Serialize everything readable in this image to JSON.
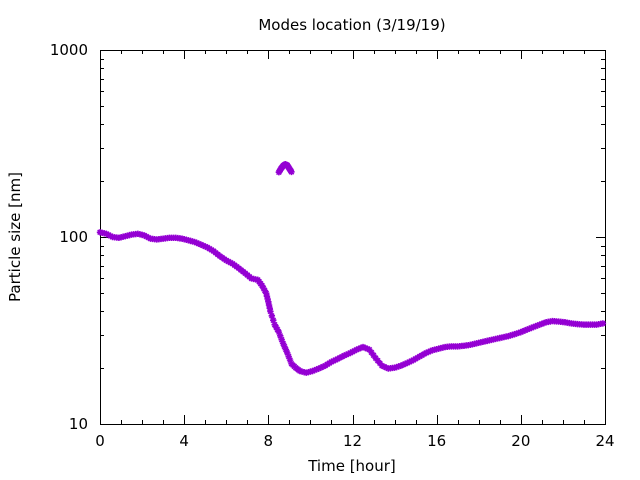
{
  "chart_data": {
    "type": "scatter",
    "title": "Modes location (3/19/19)",
    "xlabel": "Time [hour]",
    "ylabel": "Particle size [nm]",
    "xlim": [
      0,
      24
    ],
    "ylim": [
      10,
      1000
    ],
    "y_scale": "log",
    "grid": false,
    "legend": "none",
    "x_ticks": [
      0,
      4,
      8,
      12,
      16,
      20,
      24
    ],
    "x_tick_labels": [
      "0",
      "4",
      "8",
      "12",
      "16",
      "20",
      "24"
    ],
    "y_ticks": [
      10,
      100,
      1000
    ],
    "y_tick_labels": [
      "10",
      "100",
      "1000"
    ],
    "marker_color": "#9400D3",
    "series": [
      {
        "points": [
          [
            0.0,
            106
          ],
          [
            0.3,
            104
          ],
          [
            0.6,
            100
          ],
          [
            0.9,
            99
          ],
          [
            1.2,
            101
          ],
          [
            1.5,
            103
          ],
          [
            1.8,
            104
          ],
          [
            2.1,
            102
          ],
          [
            2.4,
            98
          ],
          [
            2.7,
            97
          ],
          [
            3.0,
            98
          ],
          [
            3.3,
            99
          ],
          [
            3.6,
            99
          ],
          [
            3.9,
            98
          ],
          [
            4.2,
            96
          ],
          [
            4.5,
            94
          ],
          [
            4.8,
            91
          ],
          [
            5.1,
            88
          ],
          [
            5.4,
            84
          ],
          [
            5.7,
            79
          ],
          [
            6.0,
            75
          ],
          [
            6.3,
            72
          ],
          [
            6.6,
            68
          ],
          [
            6.9,
            64
          ],
          [
            7.2,
            60
          ],
          [
            7.5,
            59
          ],
          [
            7.7,
            55
          ],
          [
            7.9,
            50
          ],
          [
            8.0,
            45
          ],
          [
            8.1,
            40
          ],
          [
            8.3,
            34
          ],
          [
            8.5,
            31
          ],
          [
            8.7,
            27
          ],
          [
            8.9,
            24
          ],
          [
            9.1,
            21
          ],
          [
            9.3,
            20
          ],
          [
            9.5,
            19.2
          ],
          [
            9.8,
            18.8
          ],
          [
            10.1,
            19.2
          ],
          [
            10.4,
            19.8
          ],
          [
            10.7,
            20.5
          ],
          [
            11.0,
            21.5
          ],
          [
            11.3,
            22.3
          ],
          [
            11.6,
            23.2
          ],
          [
            11.9,
            24.0
          ],
          [
            12.2,
            25.0
          ],
          [
            12.5,
            25.8
          ],
          [
            12.8,
            25.0
          ],
          [
            13.1,
            22.5
          ],
          [
            13.4,
            20.5
          ],
          [
            13.7,
            19.8
          ],
          [
            14.0,
            20.0
          ],
          [
            14.3,
            20.5
          ],
          [
            14.6,
            21.2
          ],
          [
            14.9,
            22.0
          ],
          [
            15.2,
            23.0
          ],
          [
            15.5,
            24.0
          ],
          [
            15.8,
            24.8
          ],
          [
            16.1,
            25.3
          ],
          [
            16.4,
            25.8
          ],
          [
            16.7,
            26.0
          ],
          [
            17.0,
            26.0
          ],
          [
            17.3,
            26.2
          ],
          [
            17.6,
            26.5
          ],
          [
            17.9,
            27.0
          ],
          [
            18.2,
            27.5
          ],
          [
            18.5,
            28.0
          ],
          [
            18.8,
            28.5
          ],
          [
            19.1,
            29.0
          ],
          [
            19.4,
            29.5
          ],
          [
            19.7,
            30.2
          ],
          [
            20.0,
            31.0
          ],
          [
            20.3,
            32.0
          ],
          [
            20.6,
            33.0
          ],
          [
            20.9,
            34.0
          ],
          [
            21.2,
            35.0
          ],
          [
            21.5,
            35.5
          ],
          [
            21.8,
            35.3
          ],
          [
            22.1,
            35.0
          ],
          [
            22.4,
            34.5
          ],
          [
            22.7,
            34.2
          ],
          [
            23.0,
            34.0
          ],
          [
            23.3,
            34.0
          ],
          [
            23.6,
            34.0
          ],
          [
            23.9,
            34.5
          ],
          [
            8.5,
            222
          ],
          [
            8.6,
            232
          ],
          [
            8.7,
            240
          ],
          [
            8.8,
            245
          ],
          [
            8.9,
            242
          ],
          [
            9.0,
            232
          ],
          [
            9.1,
            223
          ]
        ]
      }
    ]
  }
}
